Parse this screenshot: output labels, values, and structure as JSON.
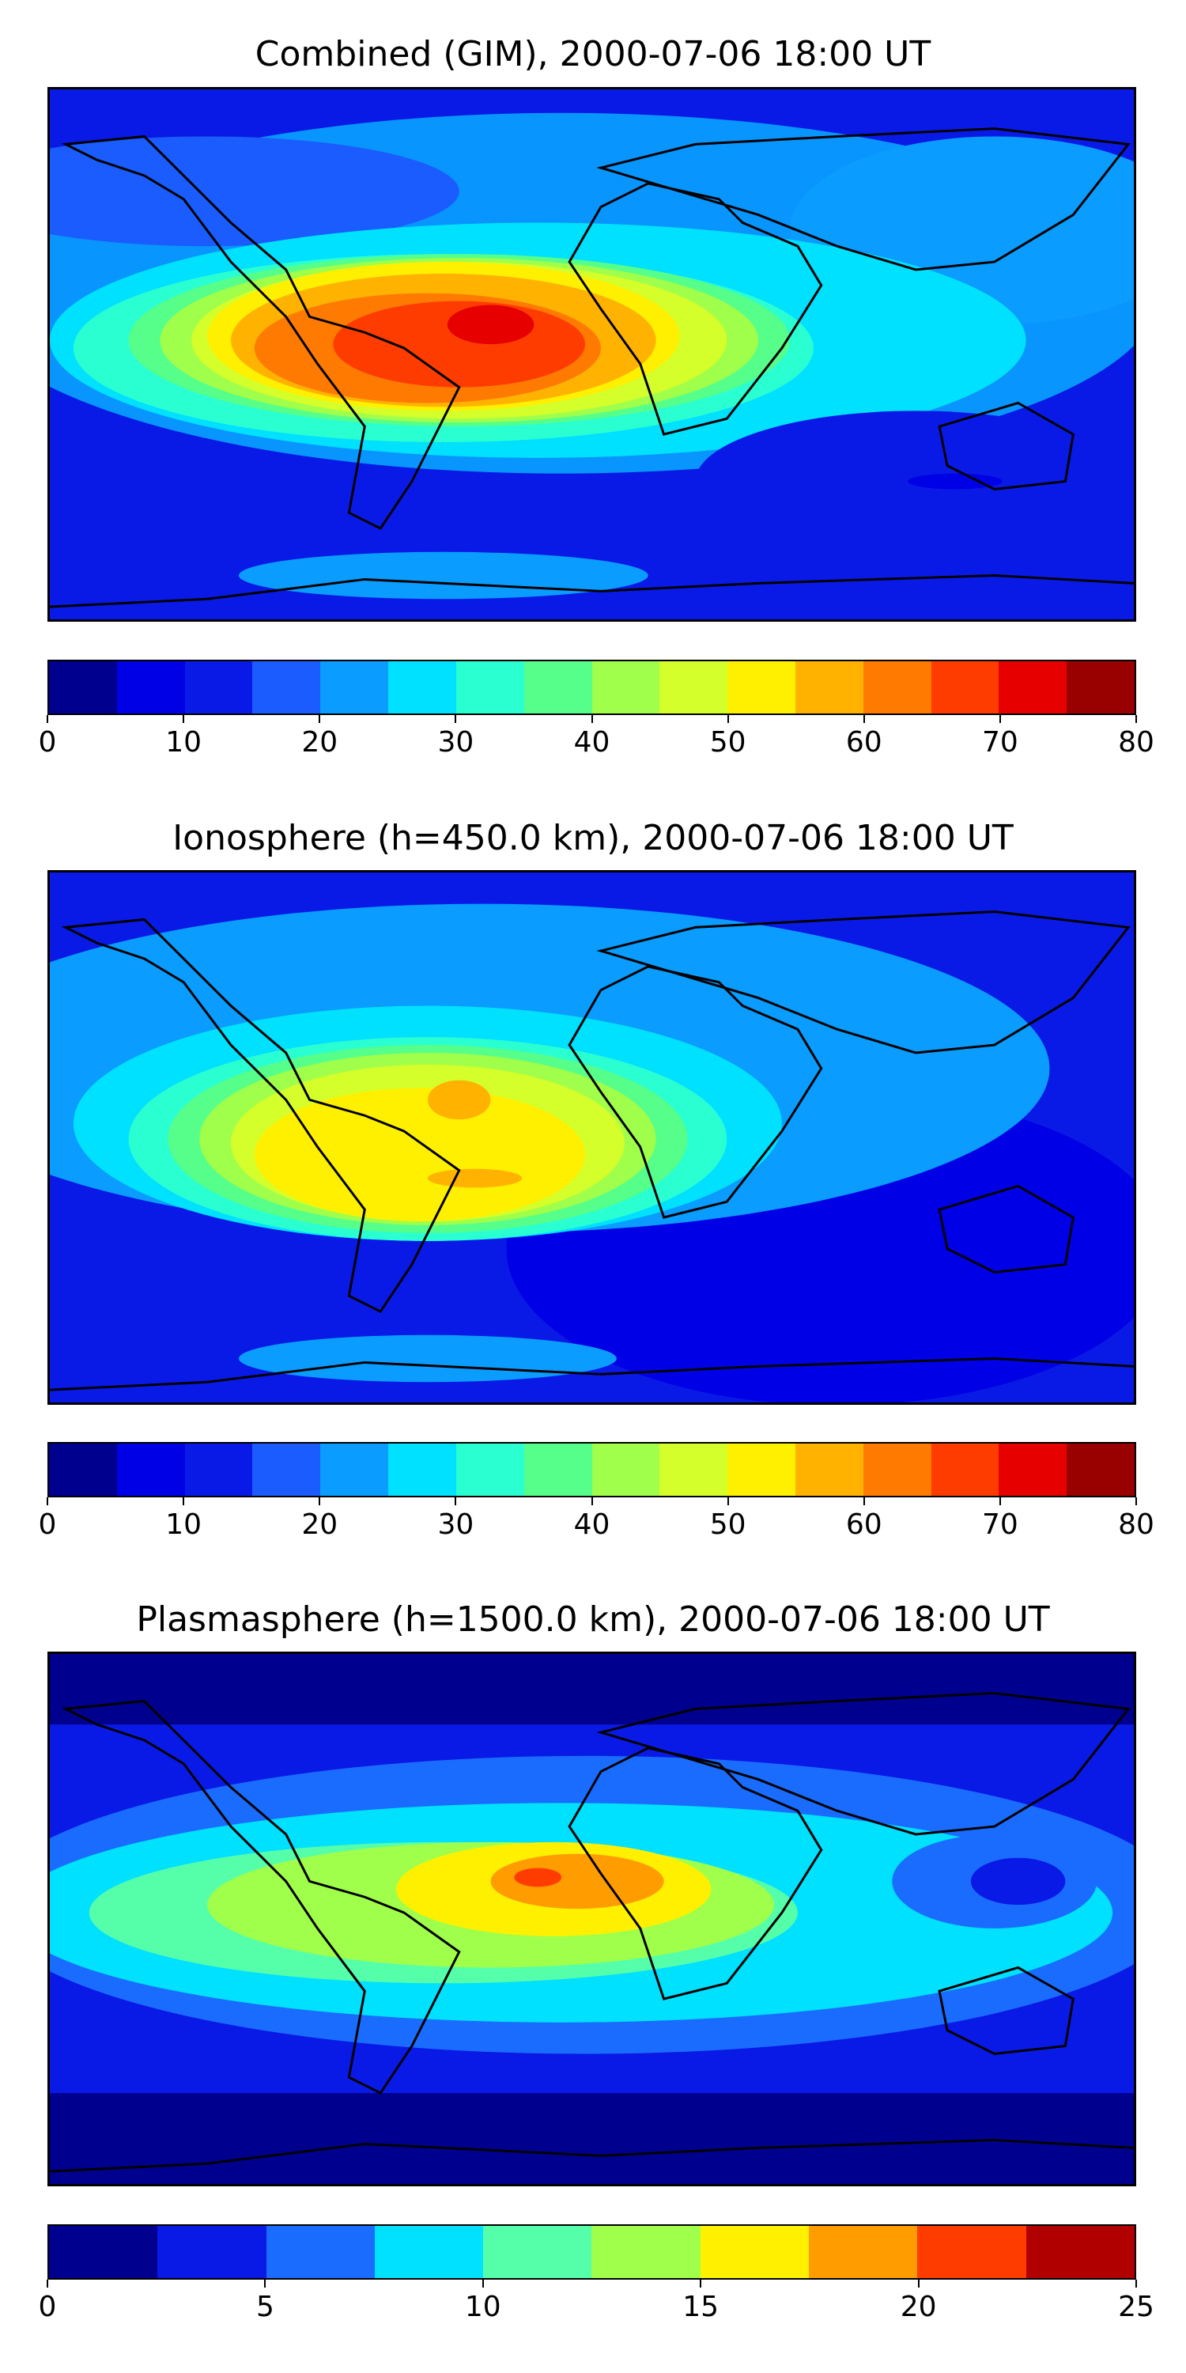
{
  "panels": [
    {
      "title": "Combined (GIM), 2000-07-06 18:00 UT",
      "colorbar": {
        "colors": [
          "#00008f",
          "#0000e6",
          "#0a1ae6",
          "#1a5cff",
          "#0a9cff",
          "#00e0ff",
          "#2affd2",
          "#55ff8a",
          "#a0ff4a",
          "#d4ff2a",
          "#fff000",
          "#ffb300",
          "#ff7a00",
          "#ff3c00",
          "#e60000",
          "#990000"
        ],
        "ticks": [
          "0",
          "10",
          "20",
          "30",
          "40",
          "50",
          "60",
          "70",
          "80"
        ]
      }
    },
    {
      "title": "Ionosphere  (h=450.0 km), 2000-07-06 18:00 UT",
      "colorbar": {
        "colors": [
          "#00008f",
          "#0000e6",
          "#0a1ae6",
          "#1a5cff",
          "#0a9cff",
          "#00e0ff",
          "#2affd2",
          "#55ff8a",
          "#a0ff4a",
          "#d4ff2a",
          "#fff000",
          "#ffb300",
          "#ff7a00",
          "#ff3c00",
          "#e60000",
          "#990000"
        ],
        "ticks": [
          "0",
          "10",
          "20",
          "30",
          "40",
          "50",
          "60",
          "70",
          "80"
        ]
      }
    },
    {
      "title": "Plasmasphere (h=1500.0 km), 2000-07-06 18:00 UT",
      "colorbar": {
        "colors": [
          "#00008f",
          "#0a1ae6",
          "#1a6cff",
          "#00e0ff",
          "#55ffaa",
          "#a0ff4a",
          "#fff000",
          "#ff9c00",
          "#ff3c00",
          "#b00000"
        ],
        "ticks": [
          "0",
          "5",
          "10",
          "15",
          "20",
          "25"
        ]
      }
    }
  ]
}
